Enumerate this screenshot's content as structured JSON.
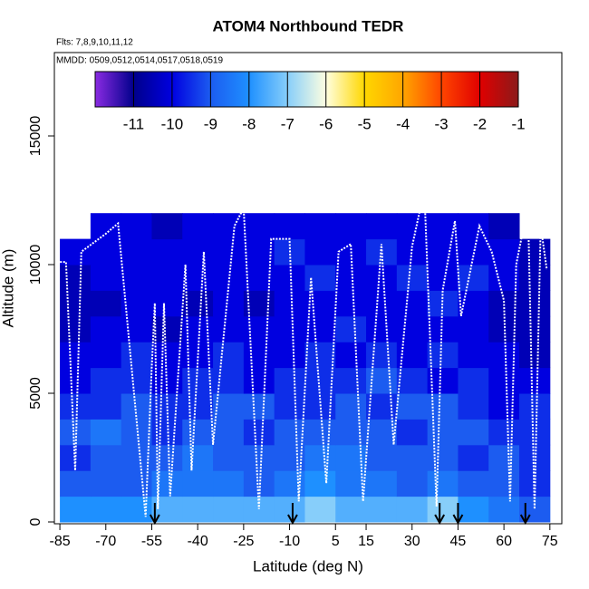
{
  "chart_data": {
    "type": "heatmap",
    "title": "ATOM4 Northbound TEDR",
    "subtitle": "Flts: 7,8,9,10,11,12",
    "annotation": "MMDD: 0509,0512,0514,0517,0518,0519",
    "x_label": "Latitude (deg N)",
    "y_label": "Altitude (m)",
    "xlim": [
      -86.8,
      78.9
    ],
    "xticks": [
      -85,
      -70,
      -55,
      -40,
      -25,
      -10,
      5,
      15,
      30,
      45,
      60,
      75
    ],
    "ylim": [
      -70,
      18240
    ],
    "yticks": [
      0,
      5000,
      10000,
      15000
    ],
    "colorbar": {
      "lim": [
        -12,
        -1
      ],
      "ticks": [
        -11,
        -10,
        -9,
        -8,
        -7,
        -6,
        -5,
        -4,
        -3,
        -2,
        -1
      ],
      "colormap": [
        {
          "value": -12,
          "color": "#8a2be2"
        },
        {
          "value": -11,
          "color": "#00008b"
        },
        {
          "value": -10,
          "color": "#0000e0"
        },
        {
          "value": -9,
          "color": "#1c5cf0"
        },
        {
          "value": -8,
          "color": "#1e90ff"
        },
        {
          "value": -7,
          "color": "#87cefa"
        },
        {
          "value": -6,
          "color": "#ffffe0"
        },
        {
          "value": -5,
          "color": "#ffd700"
        },
        {
          "value": -4,
          "color": "#ffa500"
        },
        {
          "value": -3,
          "color": "#ff4500"
        },
        {
          "value": -2,
          "color": "#e00000"
        },
        {
          "value": -1,
          "color": "#8b1a1a"
        }
      ]
    },
    "heatmap": {
      "lat_edges": [
        -85,
        -75,
        -65,
        -55,
        -45,
        -35,
        -25,
        -15,
        -5,
        5,
        15,
        25,
        35,
        45,
        55,
        65,
        75
      ],
      "alt_edges": [
        0,
        1000,
        2000,
        3000,
        4000,
        5000,
        6000,
        7000,
        8000,
        9000,
        10000,
        11000,
        12000
      ],
      "values": [
        [
          -8,
          -8,
          -8,
          -7.5,
          -7.5,
          -7.5,
          -7.5,
          -7.5,
          -7,
          -7.5,
          -7.5,
          -7.5,
          -7,
          -8,
          -8.5,
          -9
        ],
        [
          -9,
          -9,
          -9,
          -8.5,
          -8.5,
          -8.5,
          -9,
          -8.5,
          -8,
          -8.5,
          -8.5,
          -9,
          -8.5,
          -9,
          -9,
          -9.5
        ],
        [
          -9.5,
          -9,
          -9,
          -9,
          -8.5,
          -9,
          -9,
          -9,
          -8.5,
          -8.5,
          -9,
          -9,
          -9,
          -9.5,
          -9,
          -9.5
        ],
        [
          -9,
          -8.5,
          -9,
          -9.5,
          -9,
          -9,
          -9.5,
          -9,
          -9,
          -9,
          -9,
          -9.5,
          -9,
          -9,
          -9.5,
          -9.5
        ],
        [
          -9.5,
          -9.5,
          -9,
          -9.5,
          -9.5,
          -9,
          -9,
          -9.5,
          -9.5,
          -9,
          -9.5,
          -9,
          -9,
          -9.5,
          -10,
          -9.5
        ],
        [
          -10,
          -9.5,
          -9.5,
          -10,
          -9.5,
          -9.5,
          -10,
          -9.5,
          -9.5,
          -9.5,
          -9,
          -9.5,
          -10,
          -9.5,
          -10,
          -10
        ],
        [
          -10,
          -10,
          -9.5,
          -10,
          -10,
          -9.5,
          -10,
          -10,
          -9.5,
          -10,
          -9.5,
          -10,
          -9.5,
          -10,
          -10,
          -10.5
        ],
        [
          -10.5,
          -10,
          -10,
          -10.5,
          -10,
          -10,
          -10,
          -10,
          -10,
          -9.5,
          -10,
          -10,
          -10,
          -10,
          -10.5,
          -10.5
        ],
        [
          -10.5,
          -10.5,
          -10,
          -10,
          -10.5,
          -10,
          -10.5,
          -10,
          -10,
          -10,
          -10,
          -10,
          -9.5,
          -10,
          -10.5,
          -10.5
        ],
        [
          -10.5,
          -10,
          -10,
          -10,
          -10,
          -10,
          -10,
          -10,
          -9.5,
          -10,
          -10,
          -9.5,
          -10,
          -9.5,
          -10,
          -10.5
        ],
        [
          -10,
          -10,
          -10,
          -10,
          -10,
          -10,
          -10,
          -9.5,
          -10,
          -10,
          -9.5,
          -10,
          -10,
          -10,
          -10,
          -10.5
        ],
        [
          null,
          -10,
          -10,
          -10.5,
          -10,
          -10,
          -10,
          -10,
          -10,
          -10,
          -10,
          -10,
          -10,
          -10,
          -10.5,
          null
        ]
      ]
    },
    "track": {
      "color": "#ffffff",
      "x": [
        -86,
        -83,
        -80,
        -78,
        -70,
        -66,
        -57,
        -55,
        -54,
        -53,
        -51,
        -49,
        -44,
        -42,
        -38,
        -35,
        -28,
        -25,
        -20,
        -16,
        -10,
        -7,
        -3,
        2,
        6,
        10,
        14,
        20,
        24,
        30,
        34,
        38,
        40,
        44,
        46,
        52,
        56,
        60,
        62,
        64,
        66,
        68,
        70,
        72,
        74
      ],
      "y": [
        10100,
        10100,
        2000,
        10500,
        11200,
        11600,
        200,
        6000,
        8500,
        500,
        8500,
        1000,
        10000,
        2000,
        10500,
        3000,
        11500,
        12200,
        500,
        11000,
        11000,
        800,
        9500,
        1500,
        10500,
        10800,
        800,
        10800,
        3000,
        10700,
        12900,
        600,
        9000,
        11700,
        8000,
        11500,
        10500,
        8600,
        800,
        10000,
        11200,
        11400,
        500,
        11500,
        9800
      ]
    },
    "arrows": [
      -54,
      -9,
      39,
      45,
      67
    ]
  }
}
